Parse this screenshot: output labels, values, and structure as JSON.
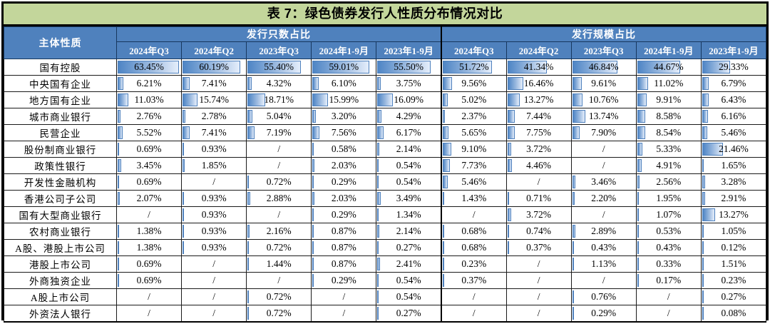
{
  "title": "表 7：绿色债券发行人性质分布情况对比",
  "colors": {
    "title_background": "#C3D69B",
    "header_background": "#4F81BD",
    "header_text": "#FFFFFF",
    "bar_border": "#4F81BD",
    "bar_gradient_start": "#4E85C5",
    "bar_gradient_end": "#E5EEFB",
    "grid_border": "#1A1A1A"
  },
  "table": {
    "corner_header": "主体性质",
    "groups": [
      {
        "label": "发行只数占比"
      },
      {
        "label": "发行规模占比"
      }
    ],
    "periods": [
      "2024年Q3",
      "2024年Q2",
      "2023年Q3",
      "2024年1-9月",
      "2023年1-9月"
    ],
    "bar_scale_max": 63.45,
    "missing_marker": "/",
    "rows": [
      {
        "label": "国有控股",
        "count_share": [
          "63.45%",
          "60.19%",
          "55.40%",
          "59.01%",
          "55.50%"
        ],
        "scale_share": [
          "51.72%",
          "41.34%",
          "46.84%",
          "44.67%",
          "29.33%"
        ]
      },
      {
        "label": "中央国有企业",
        "count_share": [
          "6.21%",
          "7.41%",
          "4.32%",
          "6.10%",
          "3.75%"
        ],
        "scale_share": [
          "9.56%",
          "16.46%",
          "9.61%",
          "11.02%",
          "6.79%"
        ]
      },
      {
        "label": "地方国有企业",
        "count_share": [
          "11.03%",
          "15.74%",
          "18.71%",
          "15.99%",
          "16.09%"
        ],
        "scale_share": [
          "5.02%",
          "13.27%",
          "10.76%",
          "9.91%",
          "6.43%"
        ]
      },
      {
        "label": "城市商业银行",
        "count_share": [
          "2.76%",
          "2.78%",
          "5.04%",
          "3.20%",
          "4.29%"
        ],
        "scale_share": [
          "2.37%",
          "7.44%",
          "13.74%",
          "8.58%",
          "6.16%"
        ]
      },
      {
        "label": "民营企业",
        "count_share": [
          "5.52%",
          "7.41%",
          "7.19%",
          "7.56%",
          "6.17%"
        ],
        "scale_share": [
          "5.65%",
          "7.75%",
          "7.90%",
          "8.54%",
          "5.46%"
        ]
      },
      {
        "label": "股份制商业银行",
        "count_share": [
          "0.69%",
          "0.93%",
          "/",
          "0.58%",
          "2.14%"
        ],
        "scale_share": [
          "9.10%",
          "3.72%",
          "/",
          "5.33%",
          "21.46%"
        ]
      },
      {
        "label": "政策性银行",
        "count_share": [
          "3.45%",
          "1.85%",
          "/",
          "2.03%",
          "0.54%"
        ],
        "scale_share": [
          "7.73%",
          "4.46%",
          "/",
          "4.91%",
          "1.65%"
        ]
      },
      {
        "label": "开发性金融机构",
        "count_share": [
          "0.69%",
          "/",
          "0.72%",
          "0.29%",
          "0.54%"
        ],
        "scale_share": [
          "5.46%",
          "/",
          "3.46%",
          "2.56%",
          "3.28%"
        ]
      },
      {
        "label": "香港公司子公司",
        "count_share": [
          "2.07%",
          "0.93%",
          "2.88%",
          "2.03%",
          "3.49%"
        ],
        "scale_share": [
          "1.43%",
          "0.71%",
          "2.20%",
          "1.95%",
          "2.91%"
        ]
      },
      {
        "label": "国有大型商业银行",
        "count_share": [
          "/",
          "0.93%",
          "/",
          "0.29%",
          "1.34%"
        ],
        "scale_share": [
          "/",
          "3.72%",
          "/",
          "1.07%",
          "13.27%"
        ]
      },
      {
        "label": "农村商业银行",
        "count_share": [
          "1.38%",
          "0.93%",
          "2.16%",
          "0.87%",
          "2.14%"
        ],
        "scale_share": [
          "0.68%",
          "0.74%",
          "2.89%",
          "0.53%",
          "1.05%"
        ]
      },
      {
        "label": "A股、港股上市公司",
        "count_share": [
          "1.38%",
          "0.93%",
          "0.72%",
          "0.87%",
          "0.27%"
        ],
        "scale_share": [
          "0.68%",
          "0.37%",
          "0.43%",
          "0.43%",
          "0.12%"
        ]
      },
      {
        "label": "港股上市公司",
        "count_share": [
          "0.69%",
          "/",
          "1.44%",
          "0.87%",
          "2.41%"
        ],
        "scale_share": [
          "0.23%",
          "/",
          "1.13%",
          "0.33%",
          "1.51%"
        ]
      },
      {
        "label": "外商独资企业",
        "count_share": [
          "0.69%",
          "/",
          "/",
          "0.29%",
          "0.54%"
        ],
        "scale_share": [
          "0.37%",
          "/",
          "/",
          "0.17%",
          "0.23%"
        ]
      },
      {
        "label": "A股上市公司",
        "count_share": [
          "/",
          "/",
          "0.72%",
          "/",
          "0.54%"
        ],
        "scale_share": [
          "/",
          "/",
          "0.76%",
          "/",
          "0.27%"
        ]
      },
      {
        "label": "外资法人银行",
        "count_share": [
          "/",
          "/",
          "0.72%",
          "/",
          "0.27%"
        ],
        "scale_share": [
          "/",
          "/",
          "0.29%",
          "/",
          "0.08%"
        ]
      }
    ]
  }
}
